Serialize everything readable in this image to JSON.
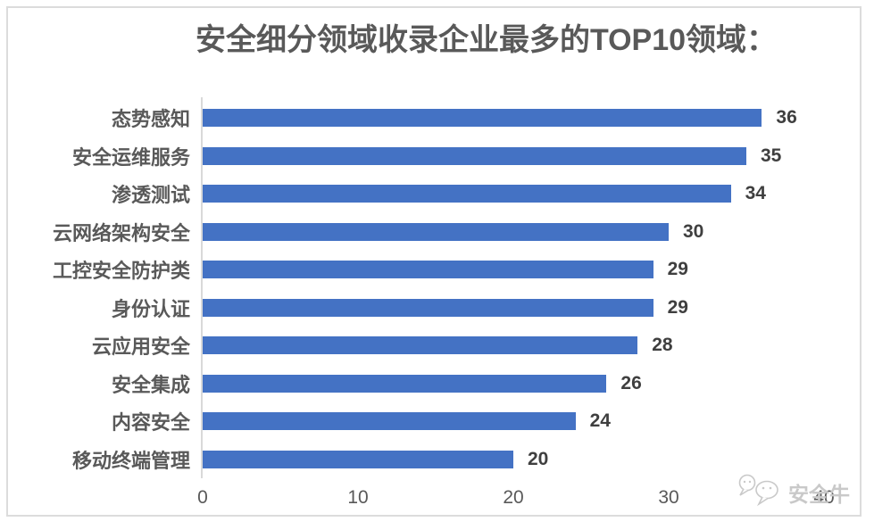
{
  "chart_data": {
    "type": "bar",
    "orientation": "horizontal",
    "title": "安全细分领域收录企业最多的TOP10领域：",
    "categories": [
      "态势感知",
      "安全运维服务",
      "渗透测试",
      "云网络架构安全",
      "工控安全防护类",
      "身份认证",
      "云应用安全",
      "安全集成",
      "内容安全",
      "移动终端管理"
    ],
    "values": [
      36,
      35,
      34,
      30,
      29,
      29,
      28,
      26,
      24,
      20
    ],
    "xticks": [
      0,
      10,
      20,
      30,
      40
    ],
    "xlim": [
      0,
      40
    ],
    "xlabel": "",
    "ylabel": "",
    "grid": false,
    "legend": null,
    "value_labels_shown": true
  },
  "colors": {
    "bar": "#4472C4",
    "title_text": "#595959",
    "category_text": "#595959",
    "value_text": "#3F3F3F",
    "tick_text": "#595959",
    "axis_line": "#D9D9D9",
    "frame_border": "#DCDCDC",
    "watermark": "#C9C9C9",
    "background": "#FFFFFF"
  },
  "watermark": {
    "text": "安全牛",
    "icon": "chat-bubbles"
  }
}
